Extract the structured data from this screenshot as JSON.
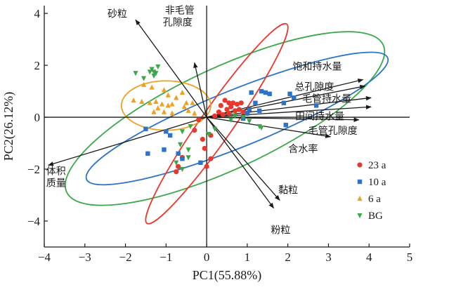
{
  "chart_data": {
    "type": "scatter",
    "subtype": "pca-biplot",
    "xlabel": "PC1(55.88%)",
    "ylabel": "PC2(26.12%)",
    "xlim": [
      -4,
      5
    ],
    "ylim": [
      -5,
      4.3
    ],
    "xticks": [
      -4,
      -3,
      -2,
      -1,
      0,
      1,
      2,
      3,
      4,
      5
    ],
    "yticks": [
      -4,
      -2,
      0,
      2,
      4
    ],
    "grid": false,
    "legend_position": "bottom-right",
    "reference_lines": {
      "x": 0,
      "y": 0
    },
    "series": [
      {
        "name": "23 a",
        "marker": "circle",
        "color": "#e8382d",
        "points": [
          [
            0.35,
            0.45
          ],
          [
            0.55,
            0.55
          ],
          [
            0.65,
            0.55
          ],
          [
            0.75,
            0.5
          ],
          [
            0.85,
            0.55
          ],
          [
            0.5,
            0.3
          ],
          [
            0.6,
            0.4
          ],
          [
            0.7,
            0.25
          ],
          [
            0.8,
            0.3
          ],
          [
            0.9,
            0.2
          ],
          [
            1.0,
            0.15
          ],
          [
            0.4,
            0.1
          ],
          [
            0.3,
            0.2
          ],
          [
            0.55,
            0.15
          ],
          [
            0.2,
            0.05
          ],
          [
            -0.2,
            -0.1
          ],
          [
            -0.3,
            -0.5
          ],
          [
            -0.1,
            -0.85
          ],
          [
            0.1,
            -0.7
          ],
          [
            -0.05,
            -1.2
          ],
          [
            0.1,
            -1.6
          ],
          [
            0.0,
            -1.9
          ],
          [
            -0.6,
            -1.55
          ],
          [
            -0.7,
            -1.9
          ],
          [
            -0.75,
            -2.1
          ],
          [
            0.45,
            0.65
          ]
        ]
      },
      {
        "name": "10 a",
        "marker": "square",
        "color": "#2b73c8",
        "points": [
          [
            1.1,
            0.95
          ],
          [
            1.35,
            1.0
          ],
          [
            1.45,
            0.95
          ],
          [
            1.55,
            0.9
          ],
          [
            1.2,
            0.55
          ],
          [
            1.9,
            0.55
          ],
          [
            2.05,
            0.9
          ],
          [
            2.15,
            0.75
          ],
          [
            2.7,
            0.45
          ],
          [
            1.05,
            0.3
          ],
          [
            1.3,
            0.25
          ],
          [
            1.0,
            0.15
          ],
          [
            -1.5,
            -0.45
          ],
          [
            -1.0,
            -0.55
          ],
          [
            -0.9,
            -0.7
          ],
          [
            -1.05,
            -1.25
          ],
          [
            -0.7,
            -1.4
          ],
          [
            -0.15,
            -1.75
          ],
          [
            -1.45,
            -1.4
          ],
          [
            -0.6,
            -1.6
          ],
          [
            1.95,
            -0.3
          ],
          [
            0.9,
            -0.05
          ]
        ]
      },
      {
        "name": "6 a",
        "marker": "triangle-up",
        "color": "#f0a020",
        "points": [
          [
            -1.55,
            1.25
          ],
          [
            -1.35,
            1.15
          ],
          [
            -1.05,
            1.05
          ],
          [
            -0.95,
            0.85
          ],
          [
            -0.75,
            0.75
          ],
          [
            -0.6,
            0.95
          ],
          [
            -1.8,
            0.65
          ],
          [
            -1.6,
            0.6
          ],
          [
            -1.4,
            0.55
          ],
          [
            -1.25,
            0.6
          ],
          [
            -1.1,
            0.5
          ],
          [
            -0.95,
            0.45
          ],
          [
            -0.85,
            0.5
          ],
          [
            -0.5,
            0.55
          ],
          [
            -0.45,
            0.25
          ],
          [
            -0.3,
            0.15
          ],
          [
            -1.3,
            0.2
          ],
          [
            -1.05,
            0.2
          ],
          [
            -0.85,
            0.15
          ],
          [
            -0.55,
            0.4
          ],
          [
            -1.2,
            0.35
          ],
          [
            -0.35,
            0.55
          ]
        ]
      },
      {
        "name": "BG",
        "marker": "triangle-down",
        "color": "#3aa84a",
        "points": [
          [
            -1.35,
            1.85
          ],
          [
            -1.3,
            1.75
          ],
          [
            -1.25,
            1.7
          ],
          [
            -1.3,
            1.6
          ],
          [
            -1.4,
            1.75
          ],
          [
            -1.75,
            1.7
          ],
          [
            -1.55,
            1.5
          ],
          [
            -1.2,
            1.95
          ],
          [
            0.7,
            0.05
          ],
          [
            0.9,
            0.0
          ],
          [
            1.05,
            -0.15
          ],
          [
            1.3,
            -0.35
          ],
          [
            1.35,
            -0.4
          ],
          [
            0.6,
            -0.1
          ],
          [
            0.2,
            -0.45
          ],
          [
            -0.4,
            -0.35
          ],
          [
            -0.6,
            -0.55
          ],
          [
            -0.45,
            -1.25
          ],
          [
            -0.65,
            -1.05
          ],
          [
            -0.45,
            -1.55
          ],
          [
            -0.75,
            -1.75
          ],
          [
            -0.6,
            -2.0
          ],
          [
            0.05,
            -0.65
          ]
        ]
      }
    ],
    "loadings": [
      {
        "label": "砂粒",
        "x": -1.75,
        "y": 3.75
      },
      {
        "label": "非毛管孔隙度",
        "x": -0.3,
        "y": 2.1
      },
      {
        "label": "饱和持水量",
        "x": 3.85,
        "y": 1.45
      },
      {
        "label": "总孔隙度",
        "x": 3.9,
        "y": 1.2
      },
      {
        "label": "毛管持水量",
        "x": 4.05,
        "y": 0.75
      },
      {
        "label": "田间持水量",
        "x": 4.05,
        "y": 0.4
      },
      {
        "label": "毛管孔隙度",
        "x": 3.75,
        "y": -0.1
      },
      {
        "label": "含水率",
        "x": 3.05,
        "y": -0.75
      },
      {
        "label": "体积质量",
        "x": -3.9,
        "y": -1.85
      },
      {
        "label": "黏粒",
        "x": 1.8,
        "y": -3.2
      },
      {
        "label": "粉粒",
        "x": 1.65,
        "y": -3.5
      }
    ],
    "ellipses": [
      {
        "series": "BG",
        "color": "#3aa84a",
        "cx": 0.45,
        "cy": -0.05,
        "rx": 4.3,
        "ry": 1.95,
        "angle_deg": 25
      },
      {
        "series": "10 a",
        "color": "#2b73c8",
        "cx": 0.75,
        "cy": -0.05,
        "rx": 4.0,
        "ry": 1.1,
        "angle_deg": 22
      },
      {
        "series": "23 a",
        "color": "#e8382d",
        "cx": 0.25,
        "cy": -0.25,
        "rx": 3.0,
        "ry": 0.62,
        "angle_deg": 55
      },
      {
        "series": "6 a",
        "color": "#f0a020",
        "cx": -1.0,
        "cy": 0.45,
        "rx": 1.1,
        "ry": 0.95,
        "angle_deg": 0
      }
    ]
  }
}
